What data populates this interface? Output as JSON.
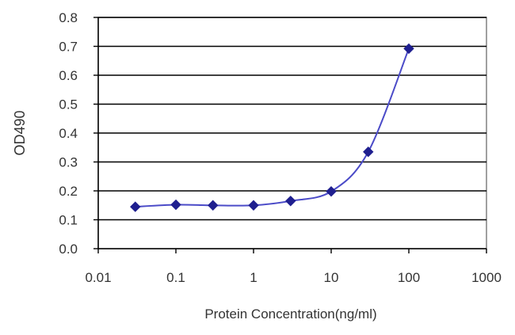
{
  "chart_data": {
    "type": "scatter",
    "title": "",
    "xlabel": "Protein Concentration(ng/ml)",
    "ylabel": "OD490",
    "xscale": "log",
    "xlim": [
      0.01,
      1000
    ],
    "ylim": [
      0,
      0.8
    ],
    "x_ticks": [
      0.01,
      0.1,
      1,
      10,
      100,
      1000
    ],
    "x_tick_labels": [
      "0.01",
      "0.1",
      "1",
      "10",
      "100",
      "1000"
    ],
    "y_ticks": [
      0,
      0.1,
      0.2,
      0.3,
      0.4,
      0.5,
      0.6,
      0.7,
      0.8
    ],
    "y_tick_labels": [
      "0.0",
      "0.1",
      "0.2",
      "0.3",
      "0.4",
      "0.5",
      "0.6",
      "0.7",
      "0.8"
    ],
    "grid": "horizontal",
    "legend": "none",
    "series": [
      {
        "x": [
          0.03,
          0.1,
          0.3,
          1,
          3,
          10,
          30,
          100
        ],
        "y": [
          0.145,
          0.152,
          0.15,
          0.15,
          0.165,
          0.198,
          0.335,
          0.692
        ],
        "marker": "diamond",
        "line": "smooth",
        "color": "#1f1f8f"
      }
    ],
    "colors": {
      "series": "#1f1f8f",
      "line": "#4b4bc8",
      "grid": "#000000",
      "plot_border": "#808080"
    }
  }
}
